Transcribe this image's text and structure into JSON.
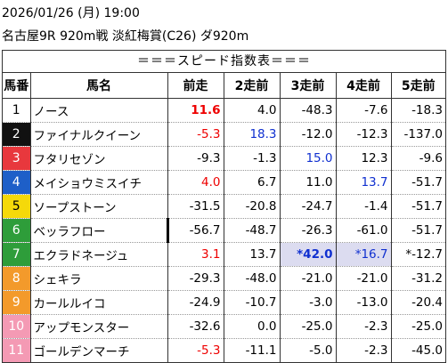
{
  "header": {
    "date": "2026/01/26 (月) 19:00",
    "race": "名古屋9R 920m戦 淡紅梅賞(C26) ダ920m"
  },
  "table": {
    "title": "＝＝＝スピード指数表＝＝＝",
    "columns": [
      "馬番",
      "馬名",
      "前走",
      "2走前",
      "3走前",
      "4走前",
      "5走前"
    ],
    "rows": [
      [
        "1",
        "ノース",
        "11.6",
        "4.0",
        "-48.3",
        "-7.6",
        "-18.3"
      ],
      [
        "2",
        "ファイナルクイーン",
        "-5.3",
        "18.3",
        "-12.0",
        "-12.3",
        "-137.0"
      ],
      [
        "3",
        "フタリセゾン",
        "-9.3",
        "-1.3",
        "15.0",
        "12.3",
        "-9.6"
      ],
      [
        "4",
        "メイショウミスイチ",
        "4.0",
        "6.7",
        "11.0",
        "13.7",
        "-51.7"
      ],
      [
        "5",
        "ソープストーン",
        "-31.5",
        "-20.8",
        "-24.7",
        "-1.4",
        "-51.7"
      ],
      [
        "6",
        "ベッラフロー",
        "-56.7",
        "-48.7",
        "-26.3",
        "-61.0",
        "-51.7"
      ],
      [
        "7",
        "エクラドネージュ",
        "3.1",
        "13.7",
        "*42.0",
        "*16.7",
        "*-12.7"
      ],
      [
        "8",
        "シェキラ",
        "-29.3",
        "-48.0",
        "-21.0",
        "-21.0",
        "-31.2"
      ],
      [
        "9",
        "カールルイコ",
        "-24.9",
        "-10.7",
        "-3.0",
        "-13.0",
        "-20.4"
      ],
      [
        "10",
        "アップモンスター",
        "-32.6",
        "0.0",
        "-25.0",
        "-2.3",
        "-25.0"
      ],
      [
        "11",
        "ゴールデンマーチ",
        "-5.3",
        "-11.1",
        "-5.0",
        "-2.3",
        "-45.0"
      ]
    ]
  }
}
